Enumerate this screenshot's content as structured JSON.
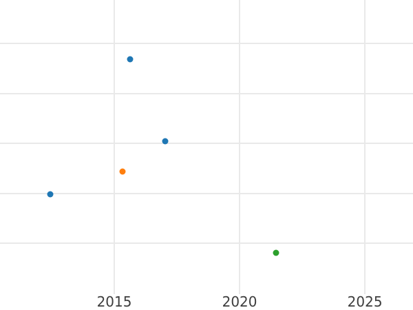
{
  "figure": {
    "background": "#ffffff"
  },
  "chart_data": {
    "type": "scatter",
    "title": "",
    "xlabel": "",
    "ylabel": "",
    "grid": true,
    "legend": false,
    "x_tick_labels": [
      "2015",
      "2020",
      "2025"
    ],
    "x_tick_values": [
      2015,
      2020,
      2025
    ],
    "xlim": [
      2010.44,
      2026.92
    ],
    "y_tick_labels_visible": false,
    "note": "y-axis labels are cropped out of view; y values are expressed in gridline units where 0 = lowest visible gridline, 1 unit = one gridline spacing",
    "y_gridline_values": [
      0,
      1,
      2,
      3,
      4
    ],
    "ylim": [
      -1.02,
      4.87
    ],
    "grid_color": "#e9e9e9",
    "tick_label_color": "#3d3d3d",
    "marker_diameter_px": 9,
    "series": [
      {
        "name": "blue",
        "color": "#1f77b4",
        "points": [
          {
            "x": 2012.45,
            "y": 0.98
          },
          {
            "x": 2015.63,
            "y": 3.69
          },
          {
            "x": 2017.03,
            "y": 2.04
          }
        ]
      },
      {
        "name": "orange",
        "color": "#ff7f0e",
        "points": [
          {
            "x": 2015.34,
            "y": 1.44
          }
        ]
      },
      {
        "name": "green",
        "color": "#2ca02c",
        "points": [
          {
            "x": 2021.46,
            "y": -0.19
          }
        ]
      }
    ]
  }
}
